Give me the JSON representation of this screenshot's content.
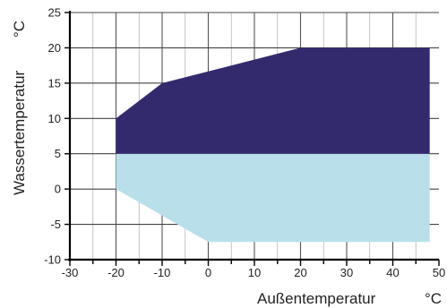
{
  "chart_data": {
    "type": "area",
    "xlabel": "Außentemperatur",
    "xunit": "°C",
    "ylabel": "Wassertemperatur",
    "yunit": "°C",
    "xlim": [
      -30,
      50
    ],
    "ylim": [
      -10,
      25
    ],
    "x_ticks": [
      "-30",
      "-20",
      "-10",
      "0",
      "10",
      "20",
      "30",
      "40",
      "50"
    ],
    "y_ticks": [
      "-10",
      "-5",
      "0",
      "5",
      "10",
      "15",
      "20",
      "25"
    ],
    "grid": true,
    "regions": [
      {
        "color": "#b9e0ea",
        "points": [
          [
            -20,
            5
          ],
          [
            48,
            5
          ],
          [
            48,
            -7.5
          ],
          [
            0,
            -7.5
          ],
          [
            -20,
            0
          ]
        ]
      },
      {
        "color": "#332a6e",
        "points": [
          [
            -20,
            5
          ],
          [
            -20,
            10
          ],
          [
            -10,
            15
          ],
          [
            20,
            20
          ],
          [
            48,
            20
          ],
          [
            48,
            5
          ]
        ]
      }
    ]
  }
}
